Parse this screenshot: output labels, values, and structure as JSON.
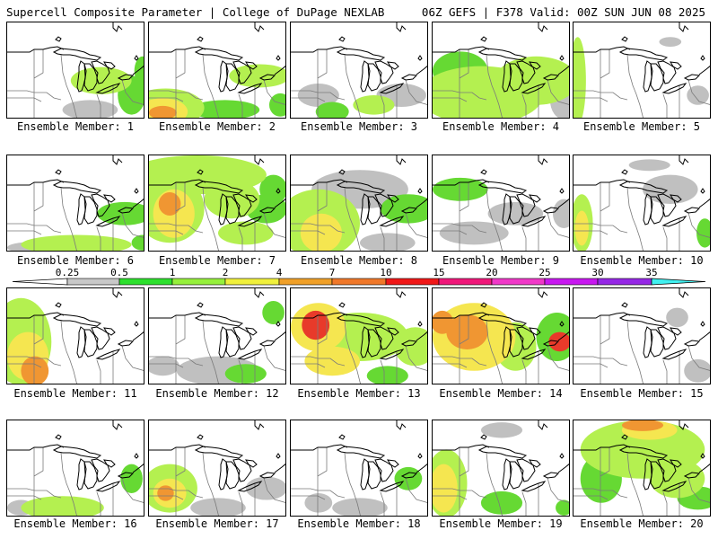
{
  "header": {
    "title_left": "Supercell Composite Parameter | College of DuPage NEXLAB",
    "title_right": "06Z GEFS | F378 Valid: 00Z SUN JUN 08 2025"
  },
  "label_prefix": "Ensemble Member: ",
  "members": [
    {
      "id": "1",
      "label": "Ensemble Member: 1",
      "blobs": [
        [
          0.68,
          0.6,
          0.22,
          0.14,
          2
        ],
        [
          0.9,
          0.75,
          0.1,
          0.2,
          1
        ],
        [
          0.6,
          0.9,
          0.2,
          0.1,
          0
        ],
        [
          0.98,
          0.5,
          0.06,
          0.15,
          1
        ]
      ]
    },
    {
      "id": "2",
      "label": "Ensemble Member: 2",
      "blobs": [
        [
          0.12,
          0.88,
          0.28,
          0.2,
          2
        ],
        [
          0.1,
          0.92,
          0.18,
          0.14,
          3
        ],
        [
          0.1,
          0.93,
          0.1,
          0.07,
          4
        ],
        [
          0.8,
          0.55,
          0.22,
          0.12,
          2
        ],
        [
          0.55,
          0.9,
          0.25,
          0.1,
          1
        ],
        [
          0.95,
          0.85,
          0.08,
          0.12,
          1
        ]
      ]
    },
    {
      "id": "3",
      "label": "Ensemble Member: 3",
      "blobs": [
        [
          0.2,
          0.75,
          0.15,
          0.12,
          0
        ],
        [
          0.3,
          0.92,
          0.12,
          0.1,
          1
        ],
        [
          0.8,
          0.75,
          0.18,
          0.12,
          0
        ],
        [
          0.6,
          0.85,
          0.15,
          0.1,
          2
        ]
      ]
    },
    {
      "id": "4",
      "label": "Ensemble Member: 4",
      "blobs": [
        [
          0.35,
          0.75,
          0.45,
          0.3,
          2
        ],
        [
          0.2,
          0.5,
          0.2,
          0.2,
          1
        ],
        [
          0.75,
          0.6,
          0.3,
          0.25,
          2
        ],
        [
          0.4,
          0.9,
          0.25,
          0.1,
          1
        ],
        [
          0.95,
          0.8,
          0.1,
          0.2,
          0
        ]
      ]
    },
    {
      "id": "5",
      "label": "Ensemble Member: 5",
      "blobs": [
        [
          0.03,
          0.6,
          0.06,
          0.45,
          2
        ],
        [
          0.7,
          0.2,
          0.08,
          0.05,
          0
        ],
        [
          0.9,
          0.75,
          0.08,
          0.1,
          0
        ]
      ]
    },
    {
      "id": "6",
      "label": "Ensemble Member: 6",
      "blobs": [
        [
          0.5,
          0.92,
          0.4,
          0.1,
          2
        ],
        [
          0.85,
          0.6,
          0.2,
          0.12,
          1
        ],
        [
          0.2,
          0.95,
          0.2,
          0.06,
          0
        ],
        [
          0.98,
          0.9,
          0.08,
          0.08,
          1
        ]
      ]
    },
    {
      "id": "7",
      "label": "Ensemble Member: 7",
      "blobs": [
        [
          0.35,
          0.2,
          0.5,
          0.2,
          2
        ],
        [
          0.15,
          0.55,
          0.25,
          0.35,
          2
        ],
        [
          0.18,
          0.6,
          0.15,
          0.25,
          3
        ],
        [
          0.15,
          0.5,
          0.08,
          0.12,
          4
        ],
        [
          0.6,
          0.45,
          0.2,
          0.2,
          2
        ],
        [
          0.85,
          0.55,
          0.15,
          0.15,
          1
        ],
        [
          0.7,
          0.8,
          0.2,
          0.12,
          2
        ],
        [
          0.9,
          0.35,
          0.1,
          0.15,
          1
        ]
      ]
    },
    {
      "id": "8",
      "label": "Ensemble Member: 8",
      "blobs": [
        [
          0.2,
          0.7,
          0.3,
          0.35,
          2
        ],
        [
          0.22,
          0.8,
          0.15,
          0.2,
          3
        ],
        [
          0.5,
          0.35,
          0.35,
          0.2,
          0
        ],
        [
          0.85,
          0.55,
          0.2,
          0.15,
          1
        ],
        [
          0.7,
          0.9,
          0.2,
          0.1,
          0
        ]
      ]
    },
    {
      "id": "9",
      "label": "Ensemble Member: 9",
      "blobs": [
        [
          0.2,
          0.35,
          0.2,
          0.12,
          1
        ],
        [
          0.3,
          0.8,
          0.25,
          0.12,
          0
        ],
        [
          0.6,
          0.6,
          0.2,
          0.12,
          0
        ],
        [
          0.95,
          0.6,
          0.08,
          0.15,
          0
        ]
      ]
    },
    {
      "id": "10",
      "label": "Ensemble Member: 10",
      "blobs": [
        [
          0.06,
          0.7,
          0.08,
          0.3,
          2
        ],
        [
          0.06,
          0.75,
          0.05,
          0.18,
          3
        ],
        [
          0.55,
          0.1,
          0.15,
          0.06,
          0
        ],
        [
          0.7,
          0.35,
          0.2,
          0.15,
          0
        ],
        [
          0.95,
          0.8,
          0.06,
          0.15,
          1
        ]
      ]
    },
    {
      "id": "11",
      "label": "Ensemble Member: 11",
      "blobs": [
        [
          0.1,
          0.55,
          0.22,
          0.45,
          2
        ],
        [
          0.15,
          0.7,
          0.15,
          0.25,
          3
        ],
        [
          0.2,
          0.85,
          0.1,
          0.15,
          4
        ],
        [
          0.05,
          0.3,
          0.08,
          0.15,
          1
        ]
      ]
    },
    {
      "id": "12",
      "label": "Ensemble Member: 12",
      "blobs": [
        [
          0.9,
          0.25,
          0.08,
          0.12,
          1
        ],
        [
          0.5,
          0.85,
          0.3,
          0.15,
          0
        ],
        [
          0.7,
          0.88,
          0.15,
          0.1,
          1
        ],
        [
          0.1,
          0.8,
          0.12,
          0.1,
          0
        ]
      ]
    },
    {
      "id": "13",
      "label": "Ensemble Member: 13",
      "blobs": [
        [
          0.2,
          0.4,
          0.2,
          0.25,
          3
        ],
        [
          0.18,
          0.38,
          0.1,
          0.15,
          5
        ],
        [
          0.5,
          0.5,
          0.35,
          0.25,
          2
        ],
        [
          0.9,
          0.6,
          0.15,
          0.2,
          2
        ],
        [
          0.3,
          0.75,
          0.2,
          0.15,
          3
        ],
        [
          0.7,
          0.9,
          0.15,
          0.1,
          1
        ]
      ]
    },
    {
      "id": "14",
      "label": "Ensemble Member: 14",
      "blobs": [
        [
          0.3,
          0.5,
          0.3,
          0.35,
          3
        ],
        [
          0.25,
          0.45,
          0.15,
          0.18,
          4
        ],
        [
          0.07,
          0.35,
          0.08,
          0.12,
          4
        ],
        [
          0.6,
          0.6,
          0.15,
          0.25,
          2
        ],
        [
          0.9,
          0.5,
          0.15,
          0.25,
          1
        ],
        [
          0.92,
          0.55,
          0.08,
          0.1,
          5
        ]
      ]
    },
    {
      "id": "15",
      "label": "Ensemble Member: 15",
      "blobs": [
        [
          0.75,
          0.3,
          0.08,
          0.1,
          0
        ],
        [
          0.9,
          0.85,
          0.1,
          0.12,
          0
        ]
      ]
    },
    {
      "id": "16",
      "label": "Ensemble Member: 16",
      "blobs": [
        [
          0.4,
          0.9,
          0.3,
          0.12,
          2
        ],
        [
          0.9,
          0.6,
          0.08,
          0.15,
          1
        ],
        [
          0.1,
          0.9,
          0.1,
          0.08,
          0
        ]
      ]
    },
    {
      "id": "17",
      "label": "Ensemble Member: 17",
      "blobs": [
        [
          0.15,
          0.7,
          0.2,
          0.25,
          2
        ],
        [
          0.15,
          0.75,
          0.12,
          0.15,
          3
        ],
        [
          0.12,
          0.75,
          0.06,
          0.08,
          4
        ],
        [
          0.5,
          0.9,
          0.2,
          0.1,
          0
        ],
        [
          0.85,
          0.7,
          0.15,
          0.12,
          0
        ]
      ]
    },
    {
      "id": "18",
      "label": "Ensemble Member: 18",
      "blobs": [
        [
          0.85,
          0.6,
          0.1,
          0.12,
          1
        ],
        [
          0.5,
          0.9,
          0.2,
          0.1,
          0
        ],
        [
          0.2,
          0.85,
          0.1,
          0.1,
          0
        ]
      ]
    },
    {
      "id": "19",
      "label": "Ensemble Member: 19",
      "blobs": [
        [
          0.1,
          0.65,
          0.15,
          0.35,
          2
        ],
        [
          0.08,
          0.7,
          0.1,
          0.25,
          3
        ],
        [
          0.5,
          0.1,
          0.15,
          0.08,
          0
        ],
        [
          0.5,
          0.85,
          0.15,
          0.12,
          1
        ],
        [
          0.95,
          0.9,
          0.06,
          0.08,
          1
        ]
      ]
    },
    {
      "id": "20",
      "label": "Ensemble Member: 20",
      "blobs": [
        [
          0.5,
          0.3,
          0.45,
          0.3,
          2
        ],
        [
          0.55,
          0.1,
          0.2,
          0.1,
          3
        ],
        [
          0.5,
          0.05,
          0.15,
          0.06,
          4
        ],
        [
          0.2,
          0.6,
          0.15,
          0.25,
          1
        ],
        [
          0.75,
          0.6,
          0.2,
          0.2,
          2
        ],
        [
          0.9,
          0.8,
          0.15,
          0.12,
          1
        ]
      ]
    }
  ],
  "legend": {
    "ticks": [
      "0.25",
      "0.5",
      "1",
      "2",
      "4",
      "7",
      "10",
      "15",
      "20",
      "25",
      "30",
      "35"
    ],
    "colors": [
      "#c8c8c8",
      "#2de02d",
      "#96f03c",
      "#f0f03c",
      "#f0a028",
      "#f0782a",
      "#f01818",
      "#f0187a",
      "#f038c8",
      "#c818f0",
      "#9628e6",
      "#c878f0",
      "#40f0f0"
    ]
  },
  "styles": {
    "shade_colors": [
      "#c0c0c0",
      "#66d933",
      "#b4f050",
      "#f5e650",
      "#f09632",
      "#e83a2a"
    ],
    "map_line": "#000000",
    "boundary_line": "#7a7a7a"
  }
}
